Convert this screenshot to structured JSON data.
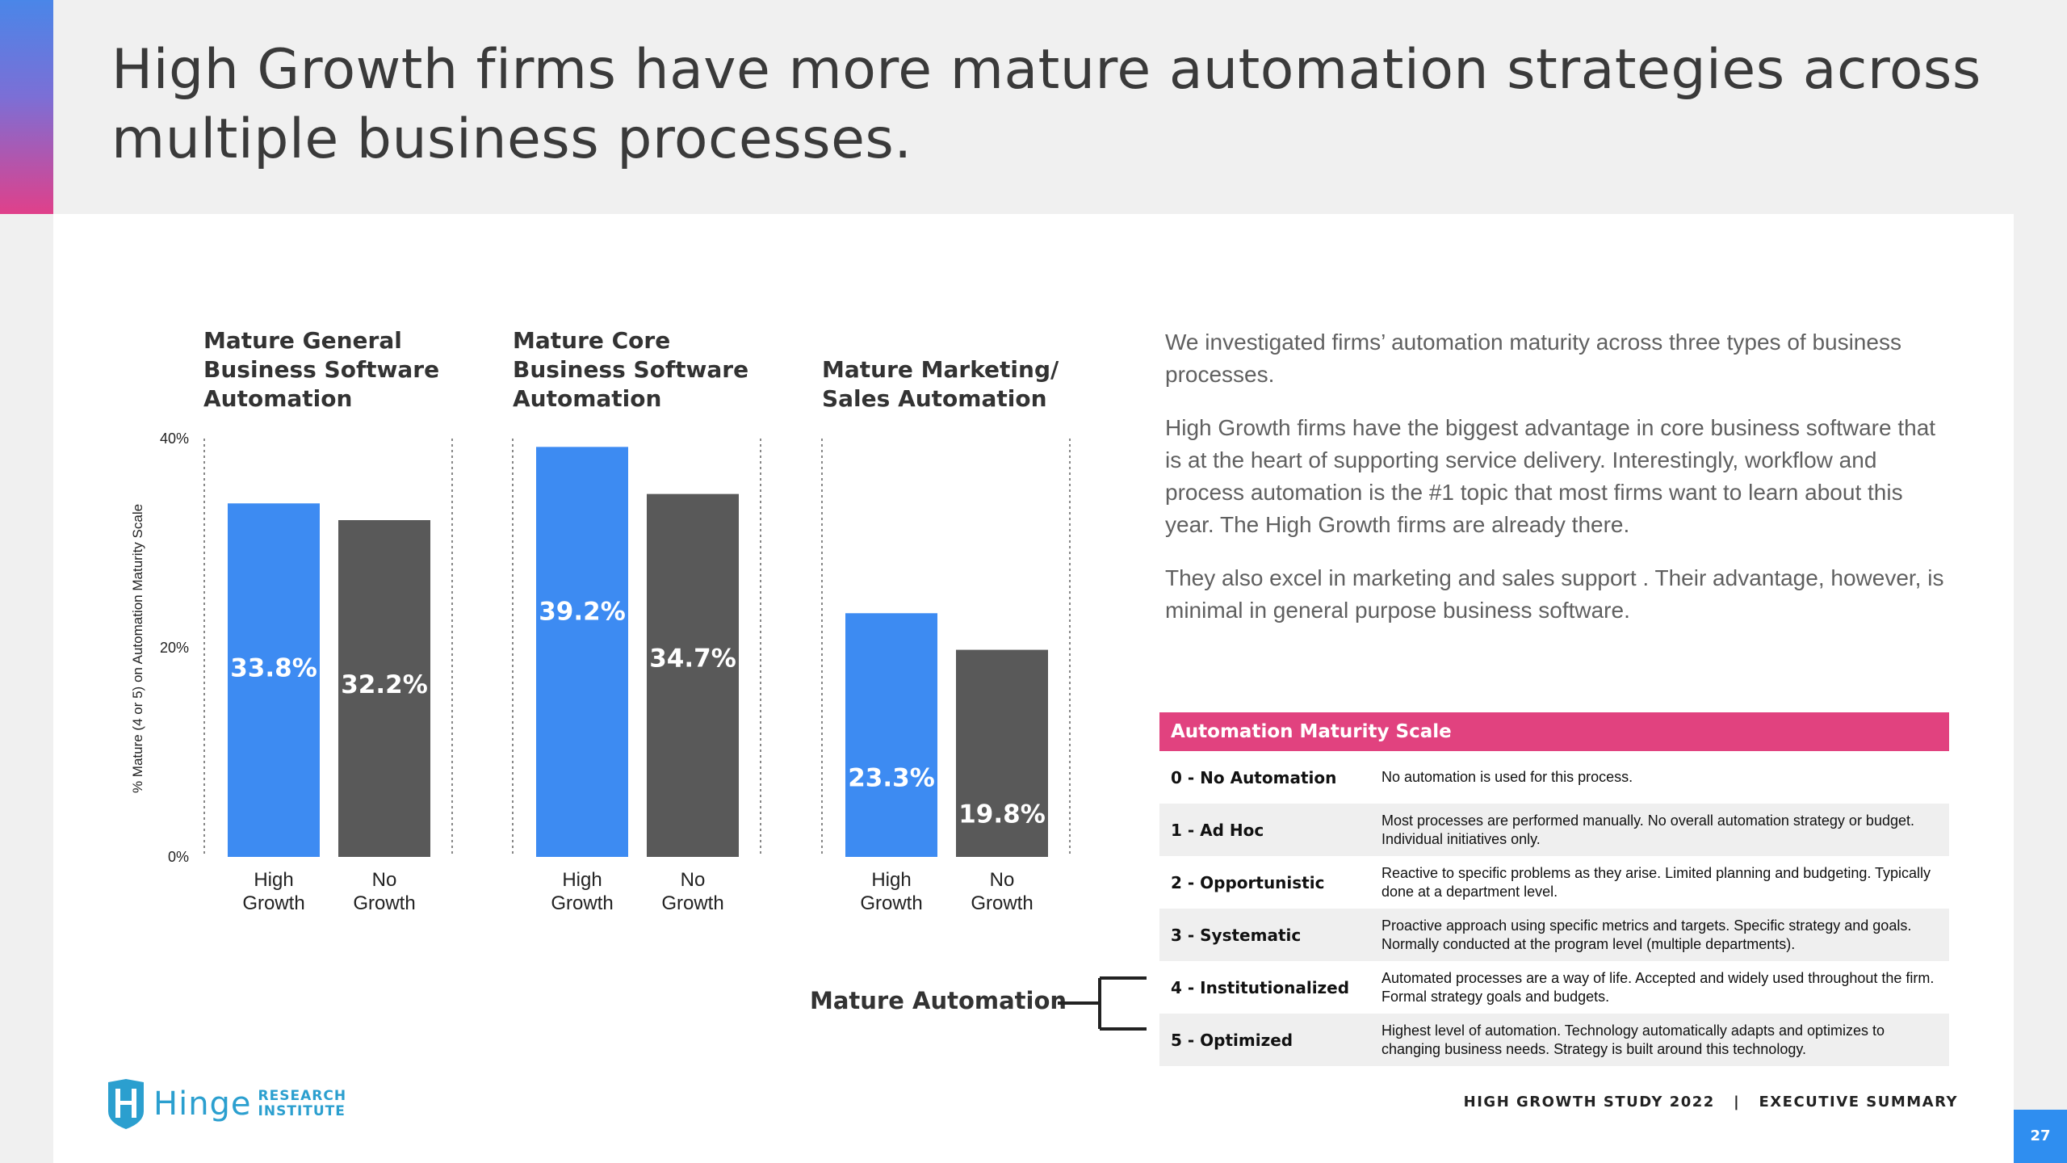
{
  "slide": {
    "title": "High Growth firms have more mature automation strategies across multiple business processes."
  },
  "colors": {
    "high_growth": "#3d8bf2",
    "no_growth": "#595959",
    "accent_pink": "#e1427f",
    "page_badge": "#2f8ef0"
  },
  "chart_data": {
    "type": "bar",
    "ylabel": "% Mature (4 or 5) on Automation Maturity Scale",
    "ylim": [
      0,
      40
    ],
    "yticks": [
      "0%",
      "20%",
      "40%"
    ],
    "grid": false,
    "groups": [
      {
        "title": "Mature General Business Software Automation",
        "categories": [
          "High Growth",
          "No Growth"
        ],
        "values": [
          33.8,
          32.2
        ],
        "labels": [
          "33.8%",
          "32.2%"
        ]
      },
      {
        "title": "Mature Core Business Software Automation",
        "categories": [
          "High Growth",
          "No Growth"
        ],
        "values": [
          39.2,
          34.7
        ],
        "labels": [
          "39.2%",
          "34.7%"
        ]
      },
      {
        "title": "Mature Marketing/ Sales Automation",
        "categories": [
          "High Growth",
          "No Growth"
        ],
        "values": [
          23.3,
          19.8
        ],
        "labels": [
          "23.3%",
          "19.8%"
        ]
      }
    ]
  },
  "chart_titles": [
    [
      "Mature General",
      "Business Software",
      "Automation"
    ],
    [
      "Mature Core",
      "Business Software",
      "Automation"
    ],
    [
      "Mature Marketing/",
      "Sales Automation"
    ]
  ],
  "bar_labels": [
    [
      "High",
      "Growth"
    ],
    [
      "No",
      "Growth"
    ]
  ],
  "body": {
    "p1": "We investigated firms’ automation maturity across three types of business processes.",
    "p2": "High Growth firms have the biggest advantage in core business software that is at the heart of supporting service delivery. Interestingly, workflow and process automation is the #1 topic that most firms want to learn about this year. The High Growth firms are already there.",
    "p3": "They also excel in marketing and sales support . Their advantage, however, is minimal in general purpose business software."
  },
  "scale": {
    "header": "Automation Maturity Scale",
    "rows": [
      {
        "level": "0 - No Automation",
        "desc": "No automation is used for this process."
      },
      {
        "level": "1 - Ad Hoc",
        "desc": "Most processes are performed manually. No overall automation strategy or budget. Individual initiatives only."
      },
      {
        "level": "2 - Opportunistic",
        "desc": "Reactive to specific problems as they arise. Limited planning and budgeting. Typically done at a department level."
      },
      {
        "level": "3 - Systematic",
        "desc": "Proactive approach using specific metrics and targets. Specific strategy and goals. Normally conducted at the program level (multiple departments)."
      },
      {
        "level": "4 - Institutionalized",
        "desc": "Automated processes are a way of life. Accepted and widely used throughout the firm. Formal strategy goals and budgets."
      },
      {
        "level": "5 - Optimized",
        "desc": "Highest level of automation. Technology automatically adapts and optimizes to changing business needs. Strategy is built around this technology."
      }
    ]
  },
  "mature_automation_label": "Mature Automation",
  "logo": {
    "word": "Hinge",
    "sub1": "RESEARCH",
    "sub2": "INSTITUTE",
    "icon": "hinge-logo-icon"
  },
  "footer": {
    "text": "HIGH GROWTH STUDY 2022   |   EXECUTIVE SUMMARY",
    "page": "27"
  }
}
